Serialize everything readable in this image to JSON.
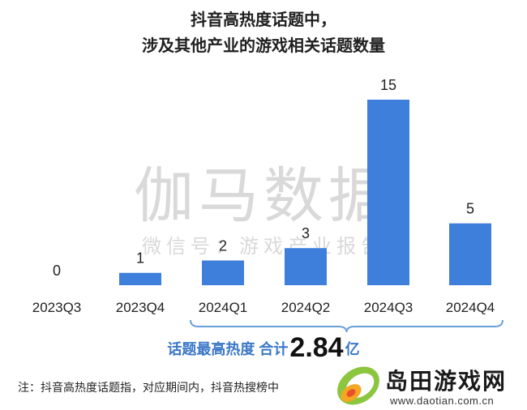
{
  "title": {
    "line1": "抖音高热度话题中，",
    "line2": "涉及其他产业的游戏相关话题数量"
  },
  "watermark": {
    "brand": "伽马数据",
    "subline": "微信号：游戏产业报告"
  },
  "summary": {
    "label": "话题最高热度 合计",
    "value": "2.84",
    "unit": "亿"
  },
  "footnote": "注：抖音高热度话题指，对应期间内，抖音热搜榜中",
  "site_logo": {
    "name": "岛田游戏网",
    "url": "www.daotian.com.cn"
  },
  "colors": {
    "bar": "#3f7fdc",
    "brace": "#6aa0d8",
    "summary_text": "#3c78c8"
  },
  "chart_data": {
    "type": "bar",
    "categories": [
      "2023Q3",
      "2023Q4",
      "2024Q1",
      "2024Q2",
      "2024Q3",
      "2024Q4"
    ],
    "values": [
      0,
      1,
      2,
      3,
      15,
      5
    ],
    "title": "抖音高热度话题中，涉及其他产业的游戏相关话题数量",
    "xlabel": "",
    "ylabel": "",
    "ylim": [
      0,
      15
    ],
    "grid": false,
    "data_labels": true
  }
}
